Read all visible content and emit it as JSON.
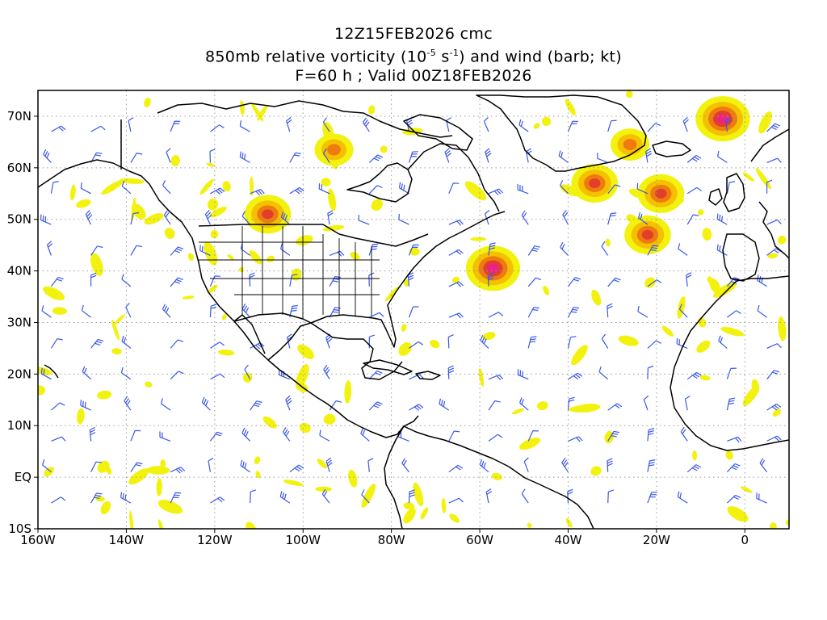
{
  "title": {
    "line1": "12Z15FEB2026 cmc",
    "line2_prefix": "850mb relative vorticity (10",
    "line2_exp1": "-5",
    "line2_mid": " s",
    "line2_exp2": "-1",
    "line2_suffix": ") and wind (barb; kt)",
    "line3": "F=60 h ; Valid 00Z18FEB2026"
  },
  "map": {
    "lon_range": [
      -160,
      10
    ],
    "lat_range": [
      -10,
      75
    ],
    "x_ticks": [
      {
        "value": -160,
        "label": "160W"
      },
      {
        "value": -140,
        "label": "140W"
      },
      {
        "value": -120,
        "label": "120W"
      },
      {
        "value": -100,
        "label": "100W"
      },
      {
        "value": -80,
        "label": "80W"
      },
      {
        "value": -60,
        "label": "60W"
      },
      {
        "value": -40,
        "label": "40W"
      },
      {
        "value": -20,
        "label": "20W"
      },
      {
        "value": 0,
        "label": "0"
      }
    ],
    "y_ticks": [
      {
        "value": 70,
        "label": "70N"
      },
      {
        "value": 60,
        "label": "60N"
      },
      {
        "value": 50,
        "label": "50N"
      },
      {
        "value": 40,
        "label": "40N"
      },
      {
        "value": 30,
        "label": "30N"
      },
      {
        "value": 20,
        "label": "20N"
      },
      {
        "value": 10,
        "label": "10N"
      },
      {
        "value": 0,
        "label": "EQ"
      },
      {
        "value": -10,
        "label": "10S"
      }
    ],
    "gridlines": "dotted",
    "colors": {
      "low": "#f2f20e",
      "mid": "#f5c000",
      "high": "#ee7a10",
      "higher": "#e0402a",
      "max": "#ee2286",
      "barb": "#3a58e8",
      "coast": "#000000"
    },
    "vorticity_maxima": [
      {
        "lon": -57,
        "lat": 40.5,
        "level": "max"
      },
      {
        "lon": -5,
        "lat": 69.5,
        "level": "max"
      },
      {
        "lon": -108,
        "lat": 51,
        "level": "higher"
      },
      {
        "lon": -19,
        "lat": 55,
        "level": "higher"
      },
      {
        "lon": -22,
        "lat": 47,
        "level": "higher"
      },
      {
        "lon": -34,
        "lat": 57,
        "level": "higher"
      },
      {
        "lon": -93,
        "lat": 63.5,
        "level": "high"
      },
      {
        "lon": -26,
        "lat": 64.5,
        "level": "high"
      }
    ]
  }
}
